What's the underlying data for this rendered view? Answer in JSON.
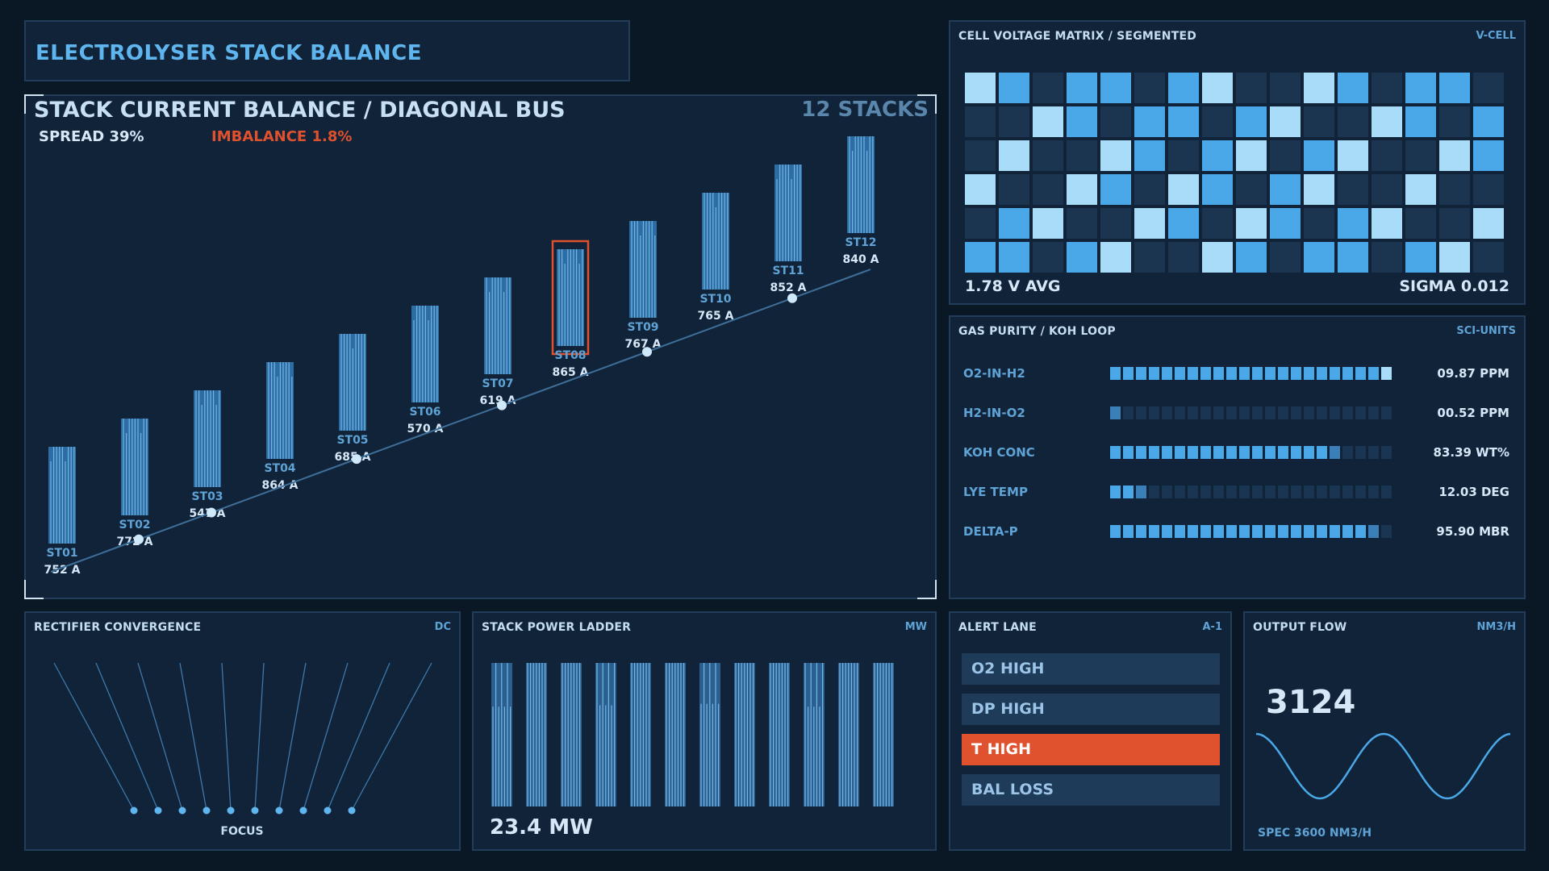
{
  "header": {
    "title": "ELECTROLYSER STACK BALANCE"
  },
  "main": {
    "title": "STACK CURRENT BALANCE / DIAGONAL BUS",
    "stack_count": "12 STACKS",
    "spread": "SPREAD  39%",
    "imbalance": "IMBALANCE  1.8%",
    "selected_stack": "ST08",
    "stacks": [
      {
        "id": "ST01",
        "current": "752 A",
        "node": false
      },
      {
        "id": "ST02",
        "current": "772 A",
        "node": true
      },
      {
        "id": "ST03",
        "current": "547 A",
        "node": true
      },
      {
        "id": "ST04",
        "current": "864 A",
        "node": false
      },
      {
        "id": "ST05",
        "current": "685 A",
        "node": true
      },
      {
        "id": "ST06",
        "current": "570 A",
        "node": false
      },
      {
        "id": "ST07",
        "current": "619 A",
        "node": true
      },
      {
        "id": "ST08",
        "current": "865 A",
        "node": false
      },
      {
        "id": "ST09",
        "current": "767 A",
        "node": true
      },
      {
        "id": "ST10",
        "current": "765 A",
        "node": false
      },
      {
        "id": "ST11",
        "current": "852 A",
        "node": true
      },
      {
        "id": "ST12",
        "current": "840 A",
        "node": false
      }
    ]
  },
  "matrix": {
    "title": "CELL VOLTAGE MATRIX / SEGMENTED",
    "tag": "V-CELL",
    "avg": "1.78 V AVG",
    "sigma": "SIGMA 0.012",
    "levels": [
      [
        3,
        2,
        0,
        2,
        2,
        0,
        2,
        3,
        0,
        0,
        3,
        2,
        0,
        2,
        2,
        0
      ],
      [
        0,
        0,
        3,
        2,
        0,
        2,
        2,
        0,
        2,
        3,
        0,
        0,
        3,
        2,
        0,
        2
      ],
      [
        0,
        3,
        0,
        0,
        3,
        2,
        0,
        2,
        3,
        0,
        2,
        3,
        0,
        0,
        3,
        2
      ],
      [
        3,
        0,
        0,
        3,
        2,
        0,
        3,
        2,
        0,
        2,
        3,
        0,
        0,
        3,
        0,
        0
      ],
      [
        0,
        2,
        3,
        0,
        0,
        3,
        2,
        0,
        3,
        2,
        0,
        2,
        3,
        0,
        0,
        3
      ],
      [
        2,
        2,
        0,
        2,
        3,
        0,
        0,
        3,
        2,
        0,
        2,
        2,
        0,
        2,
        3,
        0
      ]
    ],
    "palette": [
      "#1b3550",
      "#2c5a86",
      "#4aa8e8",
      "#a9dcf8"
    ]
  },
  "purity": {
    "title": "GAS PURITY / KOH LOOP",
    "tag": "SCI-UNITS",
    "rows": [
      {
        "label": "O2-IN-H2",
        "value": "09.87 PPM",
        "level": 0.99
      },
      {
        "label": "H2-IN-O2",
        "value": "00.52 PPM",
        "level": 0.05
      },
      {
        "label": "KOH CONC",
        "value": "83.39 WT%",
        "level": 0.84
      },
      {
        "label": "LYE TEMP",
        "value": "12.03 DEG",
        "level": 0.12
      },
      {
        "label": "DELTA-P",
        "value": "95.90 MBR",
        "level": 0.96
      }
    ]
  },
  "rectifier": {
    "title": "RECTIFIER CONVERGENCE",
    "tag": "DC",
    "focus": "FOCUS"
  },
  "ladder": {
    "title": "STACK POWER LADDER",
    "tag": "MW",
    "total": "23.4 MW",
    "levels": [
      0.92,
      0.95,
      0.9,
      0.93,
      0.88,
      0.91,
      0.94,
      0.96,
      0.89,
      0.92,
      0.95,
      0.9
    ]
  },
  "alerts": {
    "title": "ALERT LANE",
    "tag": "A-1",
    "items": [
      {
        "label": "O2 HIGH",
        "active": false
      },
      {
        "label": "DP HIGH",
        "active": false
      },
      {
        "label": "T HIGH",
        "active": true
      },
      {
        "label": "BAL LOSS",
        "active": false
      }
    ]
  },
  "flow": {
    "title": "OUTPUT FLOW",
    "tag": "NM3/H",
    "value": "3124",
    "spec": "SPEC 3600 NM3/H"
  },
  "colors": {
    "accent": "#4aa8e8",
    "alert": "#e0512e",
    "panel": "#102338"
  }
}
